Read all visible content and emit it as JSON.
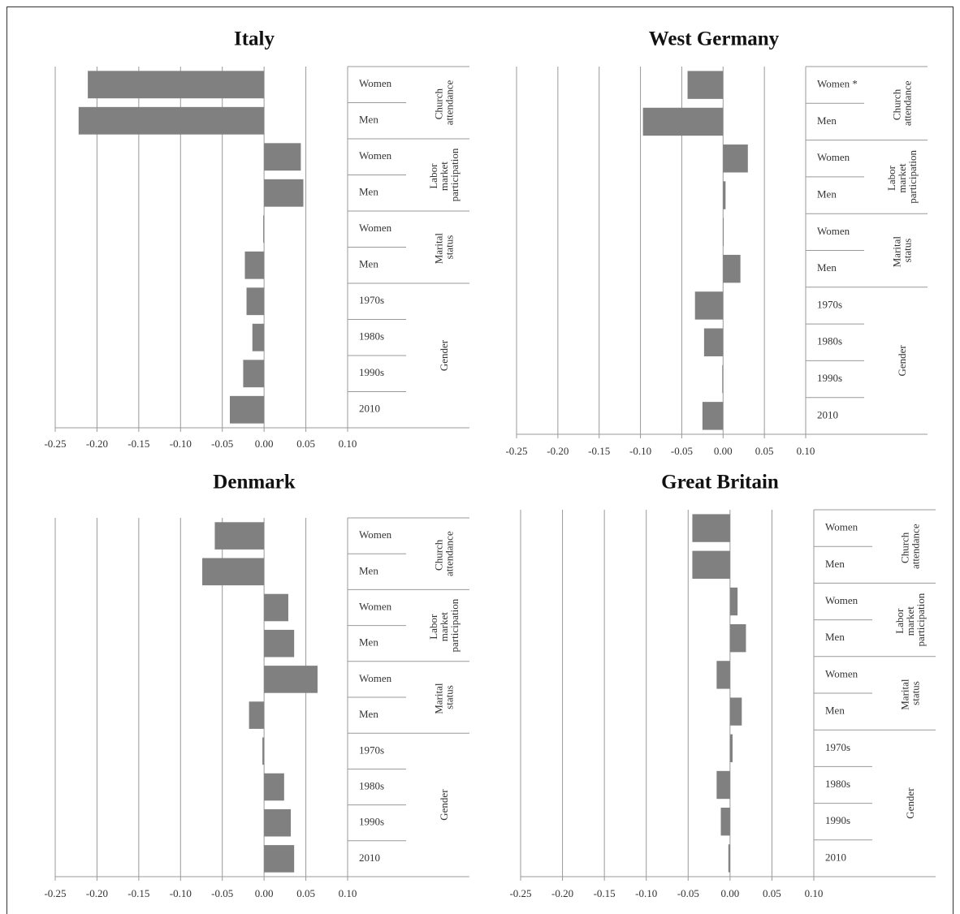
{
  "chart_data": [
    {
      "type": "bar",
      "orientation": "horizontal",
      "title": "Italy",
      "color": "#808080",
      "grid": true,
      "groups": [
        {
          "name": "Church attendance",
          "categories": [
            "Women",
            "Men"
          ],
          "values": [
            -0.211,
            -0.222
          ]
        },
        {
          "name": "Labor market participation",
          "categories": [
            "Women",
            "Men"
          ],
          "values": [
            0.044,
            0.047
          ]
        },
        {
          "name": "Marital status",
          "categories": [
            "Women",
            "Men"
          ],
          "values": [
            -0.001,
            -0.023
          ]
        },
        {
          "name": "Gender",
          "categories": [
            "1970s",
            "1980s",
            "1990s",
            "2010"
          ],
          "values": [
            -0.021,
            -0.014,
            -0.025,
            -0.041
          ]
        }
      ],
      "xlim": [
        -0.25,
        0.1
      ],
      "xticks": [
        -0.25,
        {
          "value": -0.2,
          "label": "-0.20"
        },
        -0.15,
        {
          "value": -0.1,
          "label": "-0.10"
        },
        -0.05,
        {
          "value": 0,
          "label": "0.00"
        },
        0.05,
        {
          "value": 0.1,
          "label": "0.10"
        }
      ]
    },
    {
      "type": "bar",
      "orientation": "horizontal",
      "title": "West Germany",
      "color": "#808080",
      "grid": true,
      "groups": [
        {
          "name": "Church attendance",
          "categories": [
            "Women *",
            "Men"
          ],
          "values": [
            -0.043,
            -0.097
          ]
        },
        {
          "name": "Labor market participation",
          "categories": [
            "Women",
            "Men"
          ],
          "values": [
            0.03,
            0.003
          ]
        },
        {
          "name": "Marital status",
          "categories": [
            "Women",
            "Men"
          ],
          "values": [
            0,
            0.021
          ]
        },
        {
          "name": "Gender",
          "categories": [
            "1970s",
            "1980s",
            "1990s",
            "2010"
          ],
          "values": [
            -0.034,
            -0.023,
            -0.001,
            -0.025
          ]
        }
      ],
      "xlim": [
        -0.25,
        0.1
      ],
      "xticks": [
        -0.25,
        {
          "value": -0.2,
          "label": "-0.20"
        },
        -0.15,
        {
          "value": -0.1,
          "label": "-0.10"
        },
        -0.05,
        {
          "value": 0,
          "label": "0.00"
        },
        0.05,
        {
          "value": 0.1,
          "label": "0.10"
        }
      ]
    },
    {
      "type": "bar",
      "orientation": "horizontal",
      "title": "Denmark",
      "color": "#808080",
      "grid": true,
      "groups": [
        {
          "name": "Church attendance",
          "categories": [
            "Women",
            "Men"
          ],
          "values": [
            -0.059,
            -0.074
          ]
        },
        {
          "name": "Labor market participation",
          "categories": [
            "Women",
            "Men"
          ],
          "values": [
            0.029,
            0.036
          ]
        },
        {
          "name": "Marital status",
          "categories": [
            "Women",
            "Men"
          ],
          "values": [
            0.064,
            -0.018
          ]
        },
        {
          "name": "Gender",
          "categories": [
            "1970s",
            "1980s",
            "1990s",
            "2010"
          ],
          "values": [
            -0.002,
            0.024,
            0.032,
            0.036
          ]
        }
      ],
      "xlim": [
        -0.25,
        0.1
      ],
      "xticks": [
        -0.25,
        {
          "value": -0.2,
          "label": "-0.20"
        },
        -0.15,
        {
          "value": -0.1,
          "label": "-0.10"
        },
        -0.05,
        {
          "value": 0,
          "label": "0.00"
        },
        0.05,
        {
          "value": 0.1,
          "label": "0.10"
        }
      ]
    },
    {
      "type": "bar",
      "orientation": "horizontal",
      "title": "Great Britain",
      "color": "#808080",
      "grid": true,
      "groups": [
        {
          "name": "Church attendance",
          "categories": [
            "Women",
            "Men"
          ],
          "values": [
            -0.045,
            -0.045
          ]
        },
        {
          "name": "Labor market participation",
          "categories": [
            "Women",
            "Men"
          ],
          "values": [
            0.009,
            0.019
          ]
        },
        {
          "name": "Marital status",
          "categories": [
            "Women",
            "Men"
          ],
          "values": [
            -0.016,
            0.014
          ]
        },
        {
          "name": "Gender",
          "categories": [
            "1970s",
            "1980s",
            "1990s",
            "2010"
          ],
          "values": [
            0.003,
            -0.016,
            -0.011,
            -0.002
          ]
        }
      ],
      "xlim": [
        -0.25,
        0.1
      ],
      "xticks": [
        -0.25,
        {
          "value": -0.2,
          "label": "-0.20"
        },
        -0.15,
        {
          "value": -0.1,
          "label": "-0.10"
        },
        -0.05,
        {
          "value": 0,
          "label": "0.00"
        },
        0.05,
        {
          "value": 0.1,
          "label": "0.10"
        }
      ]
    }
  ]
}
